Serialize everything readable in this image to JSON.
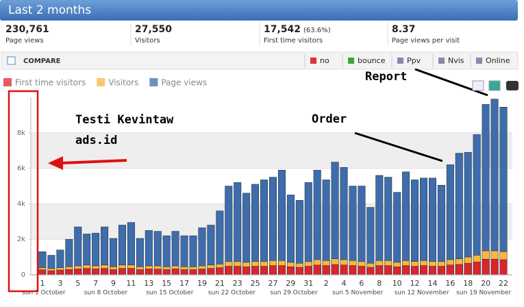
{
  "header": {
    "title": "Last 2 months"
  },
  "stats": [
    {
      "value": "230,761",
      "label": "Page views"
    },
    {
      "value": "27,550",
      "label": "Visitors"
    },
    {
      "value": "17,542",
      "extra": "(63.6%)",
      "label": "First time visitors"
    },
    {
      "value": "8.37",
      "label": "Page views per visit"
    }
  ],
  "toolbar": {
    "title": "COMPARE",
    "buttons": [
      "no",
      "bounce",
      "Ppv",
      "Nvis",
      "Online"
    ]
  },
  "annotations": [
    "Testi Kevintaw",
    "ads.id",
    "Report",
    "Order"
  ],
  "chart_data": {
    "type": "bar",
    "categories": [
      "1",
      null,
      "3",
      null,
      "5",
      null,
      "7",
      null,
      "9",
      null,
      "11",
      null,
      "13",
      null,
      "15",
      null,
      "17",
      null,
      "19",
      null,
      "21",
      null,
      "23",
      null,
      "25",
      null,
      "27",
      null,
      "29",
      null,
      "31",
      null,
      "2",
      null,
      "4",
      null,
      "6",
      null,
      "8",
      null,
      "10",
      null,
      "12",
      null,
      "14",
      null,
      "16",
      null,
      "18",
      null,
      "20",
      null,
      "22"
    ],
    "week_labels": [
      "sun 1 October",
      "sun 8 October",
      "sun 15 October",
      "sun 22 October",
      "sun 29 October",
      "sun 5 November",
      "sun 12 November",
      "sun 19 November"
    ],
    "series": [
      {
        "name": "First time visitors",
        "color": "#d9262c",
        "values": [
          280,
          230,
          270,
          300,
          330,
          360,
          330,
          360,
          290,
          360,
          360,
          290,
          330,
          320,
          290,
          330,
          290,
          290,
          330,
          360,
          400,
          480,
          480,
          450,
          480,
          480,
          520,
          520,
          450,
          420,
          480,
          550,
          520,
          580,
          550,
          520,
          480,
          420,
          520,
          520,
          450,
          520,
          480,
          520,
          480,
          480,
          550,
          580,
          650,
          720,
          880,
          880,
          850
        ]
      },
      {
        "name": "Visitors",
        "color": "#f6b73c",
        "values": [
          400,
          350,
          400,
          450,
          500,
          550,
          500,
          550,
          450,
          550,
          550,
          450,
          500,
          500,
          450,
          500,
          450,
          450,
          500,
          550,
          600,
          750,
          750,
          700,
          750,
          750,
          800,
          800,
          700,
          650,
          750,
          850,
          800,
          900,
          850,
          800,
          750,
          650,
          800,
          800,
          700,
          800,
          750,
          800,
          750,
          750,
          850,
          900,
          1000,
          1100,
          1350,
          1350,
          1300
        ]
      },
      {
        "name": "Page views",
        "color": "#3d6dab",
        "values": [
          1300,
          1100,
          1400,
          2000,
          2700,
          2300,
          2350,
          2700,
          2050,
          2800,
          2950,
          2050,
          2500,
          2450,
          2200,
          2450,
          2200,
          2200,
          2650,
          2800,
          3600,
          5000,
          5200,
          4600,
          5100,
          5350,
          5500,
          5900,
          4500,
          4200,
          5200,
          5900,
          5350,
          6350,
          6050,
          5000,
          5000,
          3800,
          5600,
          5500,
          4650,
          5800,
          5350,
          5450,
          5450,
          5050,
          6200,
          6850,
          6900,
          7900,
          9600,
          9900,
          9450
        ]
      }
    ],
    "ylim": [
      0,
      10000
    ],
    "yticks": [
      0,
      {
        "value": 2000,
        "label": "2k"
      },
      {
        "value": 4000,
        "label": "4k"
      },
      {
        "value": 6000,
        "label": "6k"
      },
      {
        "value": 8000,
        "label": "8k"
      }
    ],
    "grid": true
  }
}
